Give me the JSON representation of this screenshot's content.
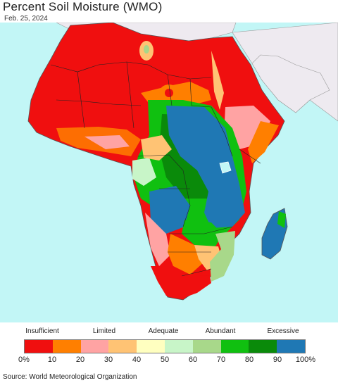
{
  "title": "Percent Soil Moisture (WMO)",
  "date": "Feb. 25, 2024",
  "legend": {
    "categories": [
      "Insufficient",
      "Limited",
      "Adequate",
      "Abundant",
      "Excessive"
    ],
    "ticks": [
      "0%",
      "10",
      "20",
      "30",
      "40",
      "50",
      "60",
      "70",
      "80",
      "90",
      "100%"
    ],
    "colors": [
      "#f00f0f",
      "#ff7f00",
      "#ffa3a3",
      "#ffc374",
      "#ffffc0",
      "#c8f5c8",
      "#a8d88a",
      "#10c010",
      "#0a8a0a",
      "#1f78b4"
    ]
  },
  "source": "Source: World Meteorological Organization",
  "map_colors": {
    "ocean": "#c2f6f6",
    "other_land": "#eeeaf0",
    "dry": "#f00f0f",
    "wet": "#1f78b4"
  }
}
